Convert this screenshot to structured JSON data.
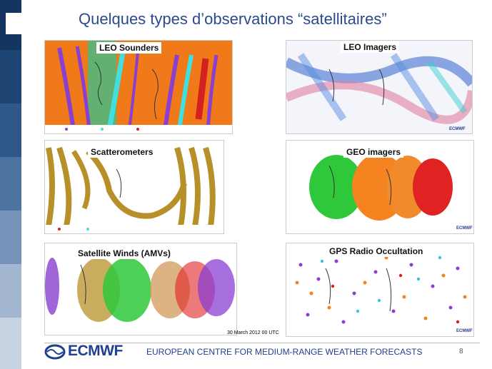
{
  "slide": {
    "title": "Quelques types d’observations “satellitaires”",
    "page_number": "8",
    "date_stamp": "30 March 2012 00 UTC"
  },
  "panels": [
    {
      "id": "leo-sounders",
      "label": "LEO Sounders"
    },
    {
      "id": "leo-imagers",
      "label": "LEO Imagers"
    },
    {
      "id": "scatterometers",
      "label": "Scatterometers"
    },
    {
      "id": "geo-imagers",
      "label": "GEO imagers"
    },
    {
      "id": "satellite-winds",
      "label": "Satellite Winds (AMVs)"
    },
    {
      "id": "gps-radio-occultation",
      "label": "GPS Radio Occultation"
    }
  ],
  "footer": {
    "logo_text": "ECMWF",
    "org_name": "EUROPEAN CENTRE FOR MEDIUM-RANGE WEATHER FORECASTS",
    "mini_tag": "ECMWF"
  },
  "colors": {
    "title": "#2a4a8c",
    "brand": "#1f3f8f",
    "leftbar_dark": "#14355f",
    "leftbar_light": "#c8d3e2"
  }
}
